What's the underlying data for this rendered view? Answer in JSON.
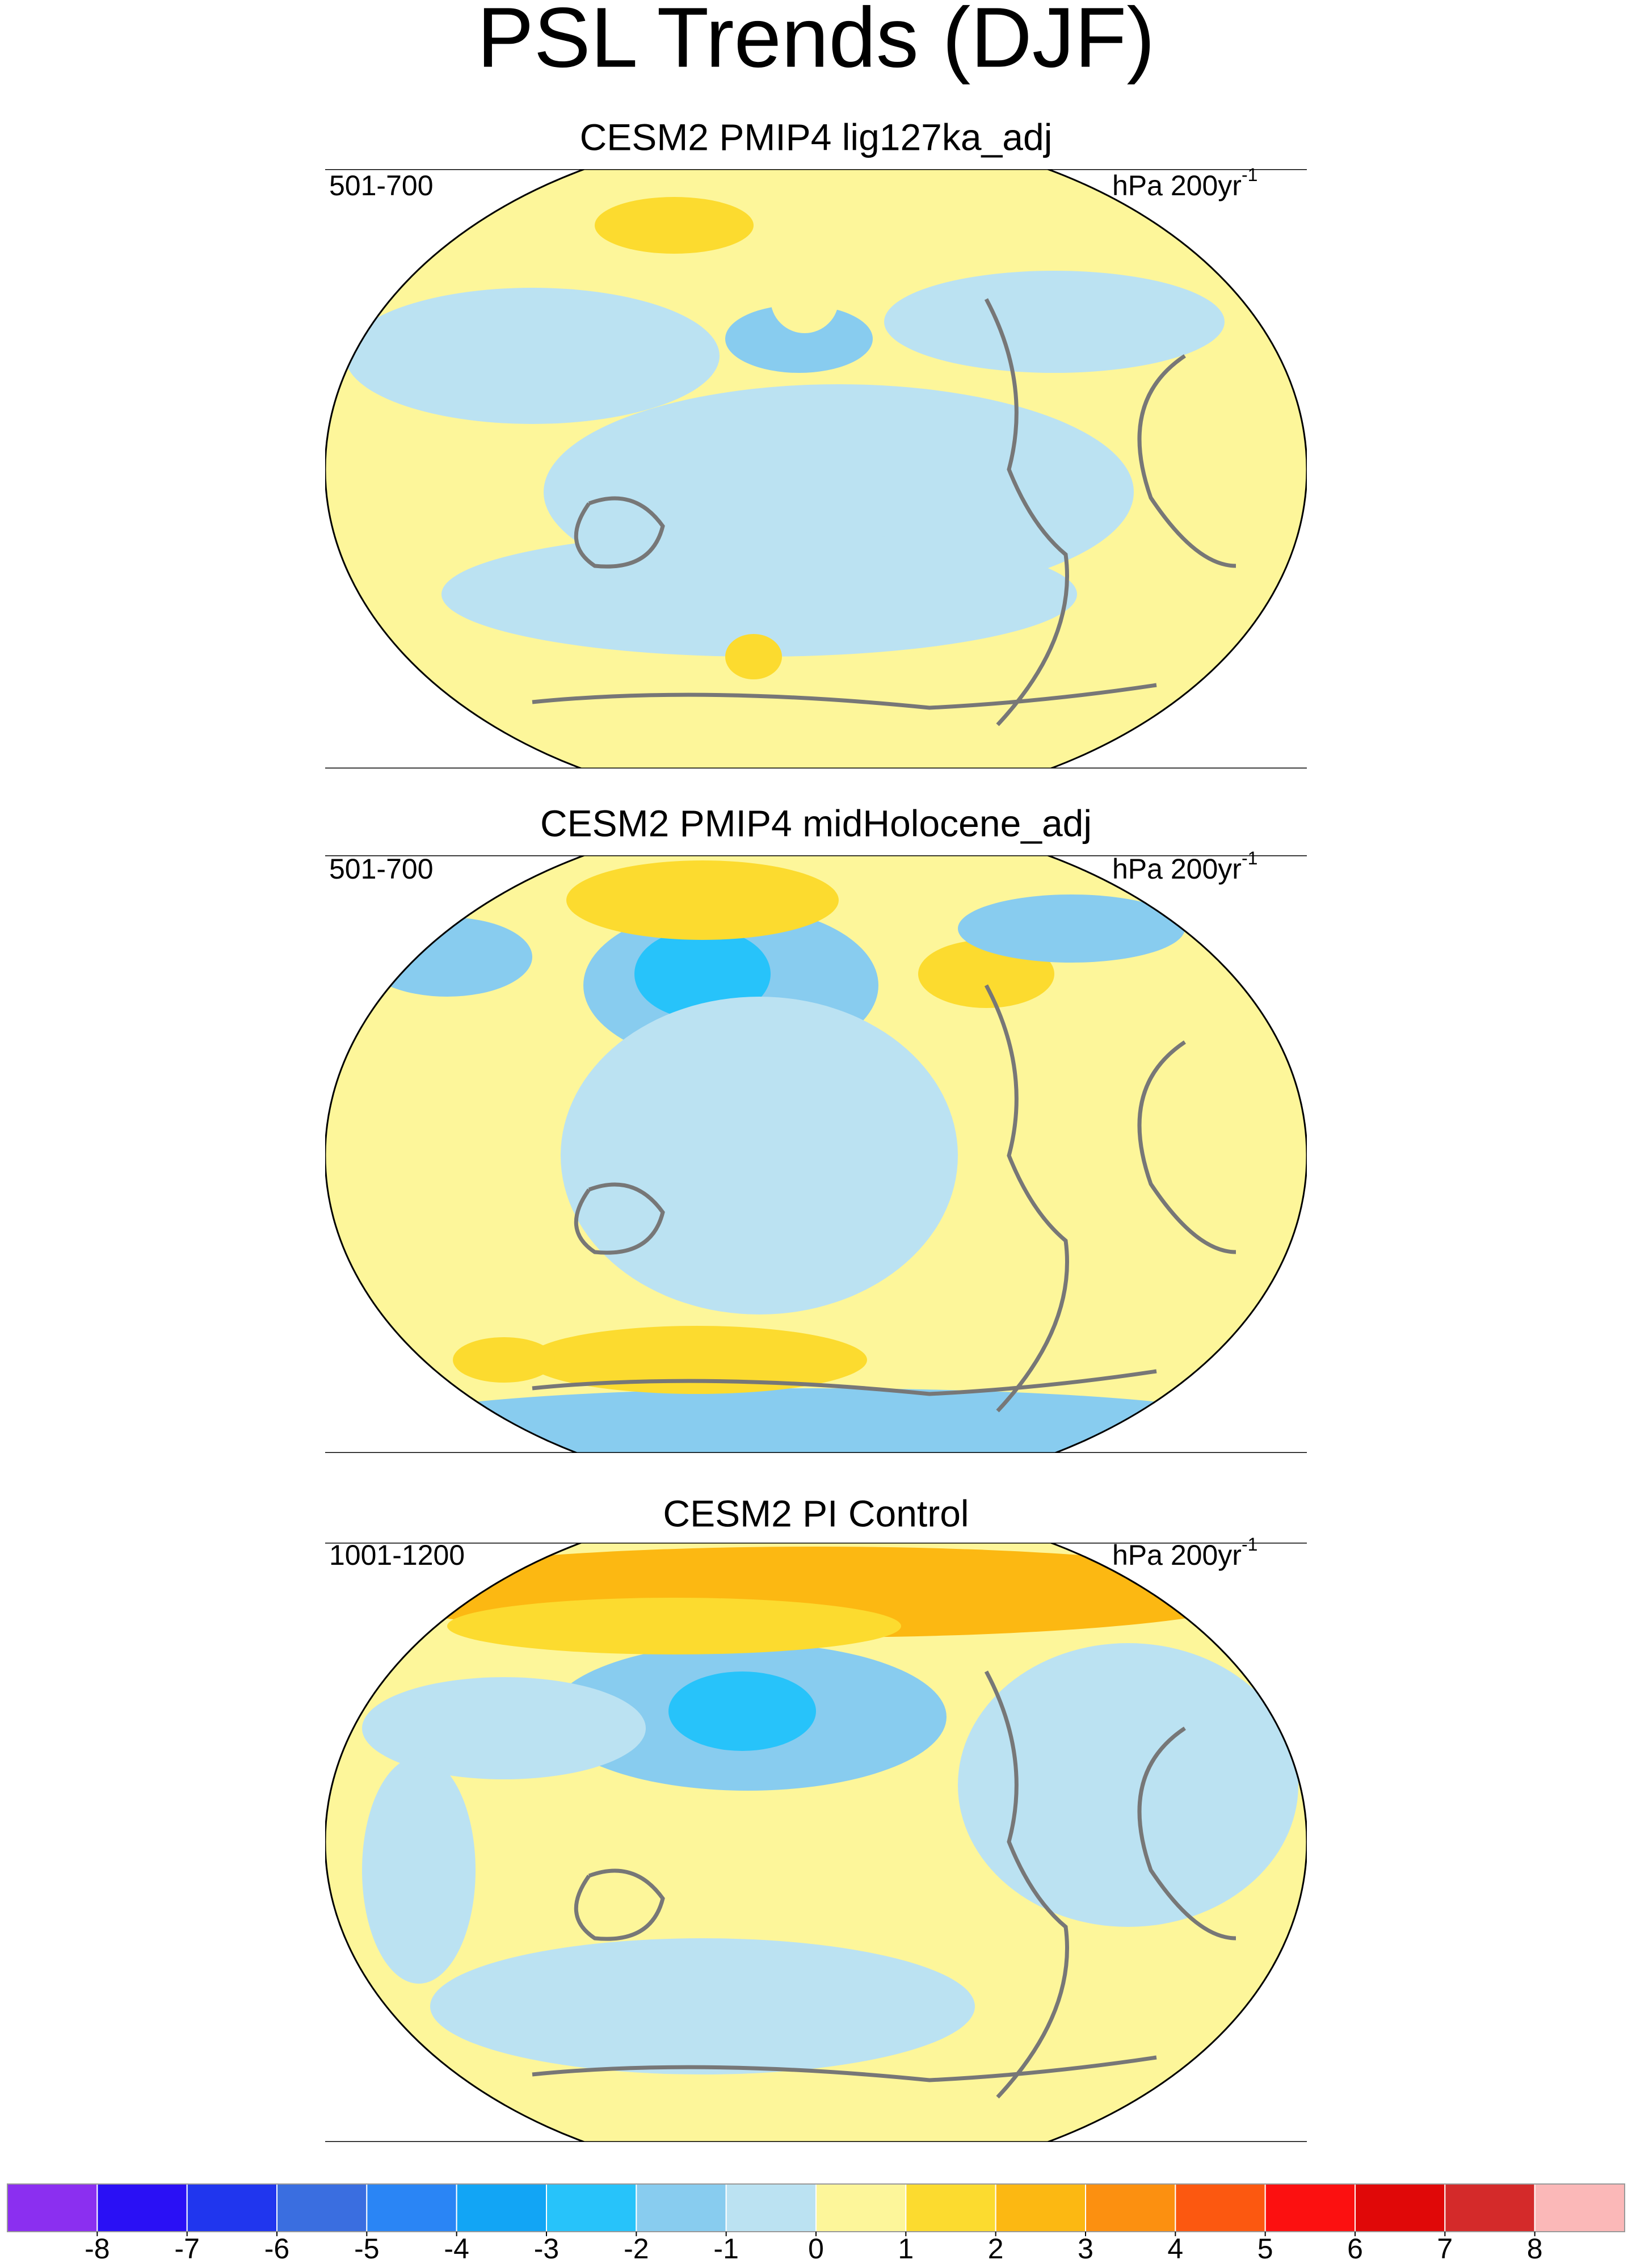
{
  "title": "PSL Trends (DJF)",
  "units": "hPa 200yr",
  "units_exponent": "-1",
  "panels": [
    {
      "title": "CESM2 PMIP4 lig127ka_adj",
      "period": "501-700"
    },
    {
      "title": "CESM2 PMIP4 midHolocene_adj",
      "period": "501-700"
    },
    {
      "title": "CESM2 PI Control",
      "period": "1001-1200"
    }
  ],
  "colorbar": {
    "levels": [
      -8,
      -7,
      -6,
      -5,
      -4,
      -3,
      -2,
      -1,
      0,
      1,
      2,
      3,
      4,
      5,
      6,
      7,
      8
    ],
    "colors": [
      "#8b2ff0",
      "#2a10f5",
      "#2036ee",
      "#3a6ee0",
      "#2a85f5",
      "#12a5f5",
      "#27c3fa",
      "#88ccef",
      "#bbe2f2",
      "#fdf69a",
      "#fcdb2f",
      "#fcb812",
      "#fc9010",
      "#fc5810",
      "#fc1010",
      "#e00808",
      "#d42a2a",
      "#fbb8b8"
    ]
  }
}
